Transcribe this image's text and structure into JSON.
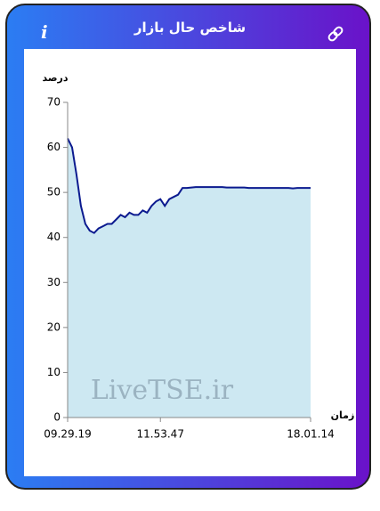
{
  "header": {
    "title": "شاخص حال بازار",
    "info": "i"
  },
  "chart_data": {
    "type": "area",
    "ylabel": "درصد",
    "xlabel": "زمان",
    "watermark": "LiveTSE.ir",
    "categories": [
      "09.29.19",
      null,
      null,
      null,
      null,
      null,
      null,
      null,
      null,
      null,
      null,
      null,
      null,
      null,
      null,
      null,
      null,
      null,
      null,
      null,
      null,
      "11.53.47",
      null,
      null,
      null,
      null,
      null,
      null,
      null,
      null,
      null,
      null,
      null,
      null,
      null,
      null,
      null,
      null,
      null,
      null,
      null,
      null,
      null,
      null,
      null,
      null,
      null,
      null,
      null,
      null,
      null,
      null,
      null,
      null,
      null,
      "18.01.14"
    ],
    "values": [
      62,
      60,
      54,
      47,
      43,
      41.5,
      41,
      42,
      42.5,
      43,
      43,
      44,
      45,
      44.5,
      45.5,
      45,
      45,
      46,
      45.5,
      47,
      48,
      48.5,
      47,
      48.5,
      49,
      49.5,
      51,
      51,
      51.1,
      51.2,
      51.2,
      51.2,
      51.2,
      51.2,
      51.2,
      51.2,
      51.1,
      51.1,
      51.1,
      51.1,
      51.1,
      51,
      51,
      51,
      51,
      51,
      51,
      51,
      51,
      51,
      51,
      50.9,
      51,
      51,
      51,
      51
    ],
    "color": "#0b1a8f",
    "fill": "#cde8f2",
    "ylim": [
      0,
      70
    ],
    "yticks": [
      0,
      10,
      20,
      30,
      40,
      50,
      60,
      70
    ],
    "grid": false
  }
}
